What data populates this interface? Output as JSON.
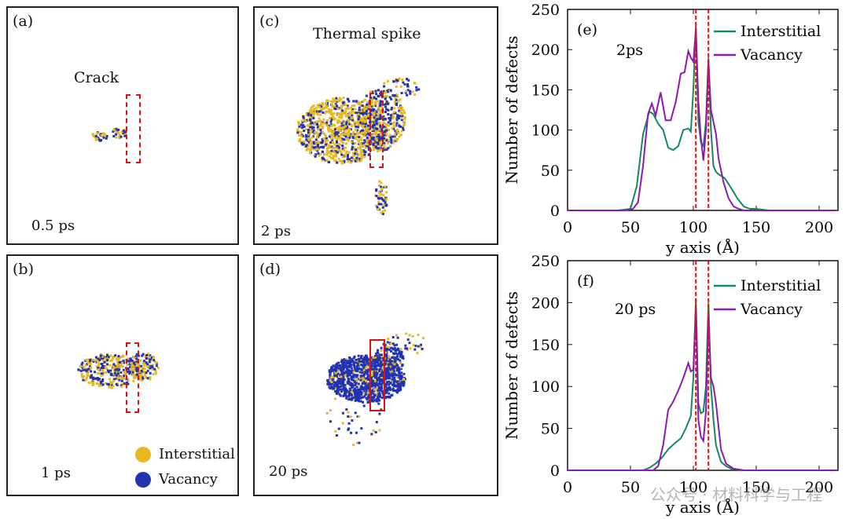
{
  "panels": {
    "a": {
      "label": "(a)",
      "time": "0.5 ps",
      "annotation": "Crack"
    },
    "b": {
      "label": "(b)",
      "time": "1 ps"
    },
    "c": {
      "label": "(c)",
      "time": "2 ps",
      "annotation": "Thermal spike"
    },
    "d": {
      "label": "(d)",
      "time": "20 ps"
    }
  },
  "legend": {
    "interstitial": "Interstitial",
    "vacancy": "Vacancy",
    "interstitial_color": "#e8b820",
    "vacancy_color": "#2233b0"
  },
  "watermark": "公众号 · 材料科学与工程",
  "chart_data": [
    {
      "type": "line",
      "panel_label": "(e)",
      "annotation": "2ps",
      "xlabel": "y axis (Å)",
      "ylabel": "Number of defects",
      "xlim": [
        0,
        215
      ],
      "ylim": [
        0,
        250
      ],
      "xticks": [
        0,
        50,
        100,
        150,
        200
      ],
      "yticks": [
        0,
        50,
        100,
        150,
        200,
        250
      ],
      "vlines": [
        102,
        112
      ],
      "legend_position": "top-right",
      "series": [
        {
          "name": "Interstitial",
          "color": "#138a5e",
          "x": [
            0,
            40,
            50,
            55,
            60,
            65,
            68,
            72,
            76,
            80,
            84,
            88,
            92,
            96,
            98,
            100,
            102,
            104,
            106,
            108,
            110,
            112,
            114,
            116,
            118,
            120,
            125,
            130,
            135,
            140,
            145,
            150,
            160,
            215
          ],
          "y": [
            0,
            0,
            2,
            30,
            95,
            123,
            120,
            108,
            100,
            78,
            75,
            80,
            100,
            102,
            98,
            150,
            230,
            110,
            85,
            80,
            110,
            190,
            100,
            55,
            48,
            45,
            40,
            28,
            15,
            5,
            2,
            2,
            0,
            0
          ]
        },
        {
          "name": "Vacancy",
          "color": "#8a1ab0",
          "x": [
            0,
            45,
            52,
            56,
            60,
            64,
            67,
            70,
            74,
            78,
            82,
            86,
            90,
            93,
            96,
            98,
            100,
            102,
            104,
            106,
            108,
            110,
            112,
            114,
            116,
            118,
            120,
            124,
            128,
            132,
            136,
            140,
            150,
            215
          ],
          "y": [
            0,
            0,
            2,
            10,
            55,
            120,
            133,
            118,
            147,
            112,
            112,
            135,
            170,
            172,
            198,
            190,
            185,
            225,
            135,
            90,
            62,
            100,
            185,
            125,
            110,
            95,
            65,
            35,
            15,
            5,
            2,
            0,
            0,
            0
          ]
        }
      ]
    },
    {
      "type": "line",
      "panel_label": "(f)",
      "annotation": "20 ps",
      "xlabel": "y axis (Å)",
      "ylabel": "Number of defects",
      "xlim": [
        0,
        215
      ],
      "ylim": [
        0,
        250
      ],
      "xticks": [
        0,
        50,
        100,
        150,
        200
      ],
      "yticks": [
        0,
        50,
        100,
        150,
        200,
        250
      ],
      "vlines": [
        102,
        112
      ],
      "legend_position": "top-right",
      "series": [
        {
          "name": "Interstitial",
          "color": "#138a5e",
          "x": [
            0,
            60,
            65,
            70,
            75,
            80,
            85,
            90,
            94,
            98,
            100,
            102,
            104,
            106,
            108,
            110,
            112,
            114,
            116,
            118,
            122,
            126,
            130,
            140,
            150,
            215
          ],
          "y": [
            0,
            0,
            3,
            8,
            15,
            25,
            32,
            38,
            50,
            65,
            110,
            205,
            80,
            68,
            70,
            100,
            200,
            100,
            60,
            30,
            10,
            5,
            2,
            0,
            0,
            0
          ]
        },
        {
          "name": "Vacancy",
          "color": "#8a1ab0",
          "x": [
            0,
            68,
            72,
            76,
            80,
            84,
            88,
            92,
            96,
            98,
            100,
            102,
            104,
            106,
            108,
            110,
            112,
            114,
            116,
            118,
            122,
            126,
            132,
            140,
            215
          ],
          "y": [
            0,
            0,
            5,
            30,
            72,
            82,
            95,
            110,
            128,
            118,
            120,
            193,
            60,
            40,
            35,
            70,
            185,
            110,
            100,
            80,
            25,
            8,
            2,
            0,
            0
          ]
        }
      ]
    }
  ]
}
